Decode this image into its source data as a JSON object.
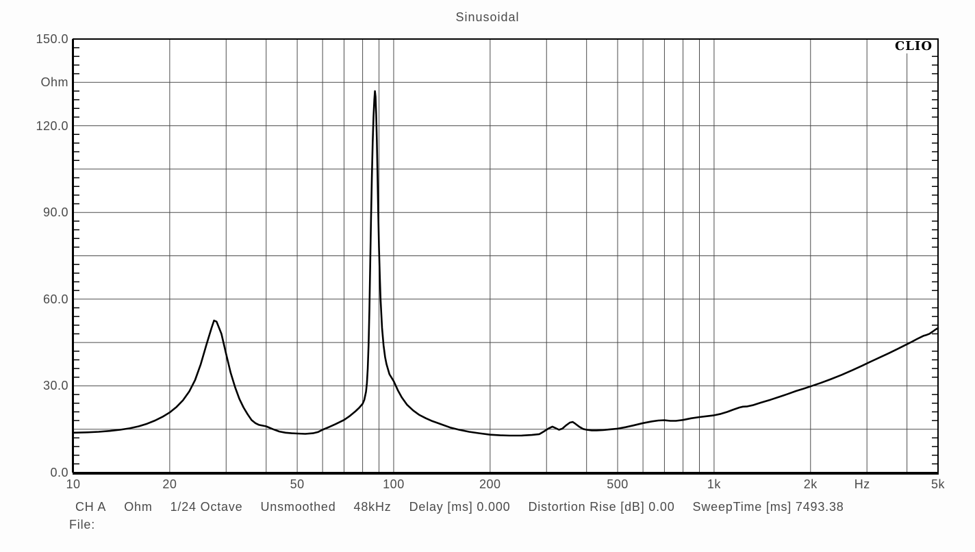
{
  "brand": "CLIO",
  "status": {
    "fields": [
      "CH A",
      "Ohm",
      "1/24 Octave",
      "Unsmoothed",
      "48kHz",
      "Delay [ms] 0.000",
      "Distortion Rise [dB] 0.00",
      "SweepTime [ms] 7493.38"
    ],
    "file_label": "File:"
  },
  "colors": {
    "background": "#fdfdfd",
    "plot_background": "#ffffff",
    "grid": "#4a4a4a",
    "border": "#000000",
    "curve": "#000000",
    "text": "#4a4a4a",
    "logo_text": "#000000"
  },
  "chart_data": {
    "type": "line",
    "title": "Sinusoidal",
    "x_scale": "log",
    "x_unit": "Hz",
    "y_unit": "Ohm",
    "xlim": [
      10,
      5000
    ],
    "ylim": [
      0,
      150
    ],
    "grid": true,
    "y_grid_step": 15,
    "y_minor_tick_step": 3,
    "y_tick_labels": [
      {
        "value": 150,
        "label": "150.0"
      },
      {
        "value": 135,
        "label": "Ohm"
      },
      {
        "value": 120,
        "label": "120.0"
      },
      {
        "value": 90,
        "label": "90.0"
      },
      {
        "value": 60,
        "label": "60.0"
      },
      {
        "value": 30,
        "label": "30.0"
      },
      {
        "value": 0,
        "label": "0.0"
      }
    ],
    "x_tick_labels": [
      {
        "value": 10,
        "label": "10"
      },
      {
        "value": 20,
        "label": "20"
      },
      {
        "value": 50,
        "label": "50"
      },
      {
        "value": 100,
        "label": "100"
      },
      {
        "value": 200,
        "label": "200"
      },
      {
        "value": 500,
        "label": "500"
      },
      {
        "value": 1000,
        "label": "1k"
      },
      {
        "value": 2000,
        "label": "2k"
      },
      {
        "value": 5000,
        "label": "5k"
      }
    ],
    "x_unit_label": {
      "label": "Hz",
      "at": 2900
    },
    "series": [
      {
        "name": "impedance",
        "points": [
          [
            10,
            13.8
          ],
          [
            11,
            13.9
          ],
          [
            12,
            14.1
          ],
          [
            13,
            14.4
          ],
          [
            14,
            14.8
          ],
          [
            15,
            15.3
          ],
          [
            16,
            16.0
          ],
          [
            17,
            16.9
          ],
          [
            18,
            18.0
          ],
          [
            19,
            19.3
          ],
          [
            20,
            20.8
          ],
          [
            21,
            22.7
          ],
          [
            22,
            25.0
          ],
          [
            23,
            28.0
          ],
          [
            24,
            32.0
          ],
          [
            25,
            37.5
          ],
          [
            26,
            44.0
          ],
          [
            27,
            50.0
          ],
          [
            27.5,
            52.6
          ],
          [
            28,
            52.2
          ],
          [
            29,
            48.0
          ],
          [
            30,
            41.0
          ],
          [
            31,
            34.5
          ],
          [
            32,
            29.5
          ],
          [
            33,
            25.5
          ],
          [
            34,
            22.5
          ],
          [
            35,
            20.2
          ],
          [
            36,
            18.2
          ],
          [
            37,
            17.1
          ],
          [
            38,
            16.5
          ],
          [
            40,
            16.0
          ],
          [
            42,
            15.0
          ],
          [
            44,
            14.2
          ],
          [
            46,
            13.8
          ],
          [
            48,
            13.6
          ],
          [
            50,
            13.5
          ],
          [
            53,
            13.4
          ],
          [
            56,
            13.6
          ],
          [
            58,
            14.0
          ],
          [
            60,
            14.8
          ],
          [
            63,
            15.8
          ],
          [
            66,
            16.8
          ],
          [
            68,
            17.5
          ],
          [
            70,
            18.2
          ],
          [
            73,
            19.6
          ],
          [
            76,
            21.2
          ],
          [
            78,
            22.4
          ],
          [
            80,
            23.8
          ],
          [
            81,
            25.2
          ],
          [
            82,
            28.0
          ],
          [
            82.5,
            31.0
          ],
          [
            83,
            36.0
          ],
          [
            83.5,
            44.0
          ],
          [
            84,
            56.0
          ],
          [
            84.5,
            72.0
          ],
          [
            85,
            88.0
          ],
          [
            85.5,
            102.0
          ],
          [
            86,
            114.0
          ],
          [
            86.5,
            123.0
          ],
          [
            87,
            129.0
          ],
          [
            87.4,
            132.0
          ],
          [
            87.8,
            130.0
          ],
          [
            88.2,
            124.0
          ],
          [
            88.6,
            115.0
          ],
          [
            89,
            104.0
          ],
          [
            89.5,
            90.0
          ],
          [
            90,
            78.0
          ],
          [
            90.5,
            68.0
          ],
          [
            91,
            60.0
          ],
          [
            92,
            50.0
          ],
          [
            93,
            44.0
          ],
          [
            94,
            40.0
          ],
          [
            95,
            37.5
          ],
          [
            97,
            34.0
          ],
          [
            100,
            31.6
          ],
          [
            103,
            28.5
          ],
          [
            106,
            26.0
          ],
          [
            110,
            23.5
          ],
          [
            115,
            21.5
          ],
          [
            120,
            20.0
          ],
          [
            126,
            18.8
          ],
          [
            132,
            17.8
          ],
          [
            140,
            16.8
          ],
          [
            150,
            15.6
          ],
          [
            160,
            14.8
          ],
          [
            172,
            14.1
          ],
          [
            185,
            13.6
          ],
          [
            200,
            13.1
          ],
          [
            215,
            12.9
          ],
          [
            230,
            12.8
          ],
          [
            250,
            12.8
          ],
          [
            270,
            13.0
          ],
          [
            285,
            13.3
          ],
          [
            295,
            14.3
          ],
          [
            305,
            15.3
          ],
          [
            313,
            15.9
          ],
          [
            320,
            15.4
          ],
          [
            328,
            14.8
          ],
          [
            336,
            15.2
          ],
          [
            345,
            16.3
          ],
          [
            355,
            17.3
          ],
          [
            362,
            17.5
          ],
          [
            370,
            16.8
          ],
          [
            380,
            15.8
          ],
          [
            390,
            15.1
          ],
          [
            400,
            14.8
          ],
          [
            415,
            14.6
          ],
          [
            430,
            14.6
          ],
          [
            450,
            14.7
          ],
          [
            470,
            14.9
          ],
          [
            500,
            15.2
          ],
          [
            530,
            15.7
          ],
          [
            560,
            16.3
          ],
          [
            600,
            17.1
          ],
          [
            640,
            17.7
          ],
          [
            670,
            18.0
          ],
          [
            700,
            18.1
          ],
          [
            730,
            17.9
          ],
          [
            760,
            17.9
          ],
          [
            800,
            18.2
          ],
          [
            850,
            18.8
          ],
          [
            900,
            19.2
          ],
          [
            950,
            19.5
          ],
          [
            1000,
            19.8
          ],
          [
            1050,
            20.3
          ],
          [
            1100,
            21.0
          ],
          [
            1150,
            21.8
          ],
          [
            1200,
            22.5
          ],
          [
            1230,
            22.8
          ],
          [
            1270,
            22.9
          ],
          [
            1320,
            23.3
          ],
          [
            1400,
            24.2
          ],
          [
            1500,
            25.2
          ],
          [
            1600,
            26.2
          ],
          [
            1700,
            27.2
          ],
          [
            1800,
            28.2
          ],
          [
            1900,
            29.0
          ],
          [
            2000,
            29.8
          ],
          [
            2150,
            31.0
          ],
          [
            2300,
            32.2
          ],
          [
            2500,
            33.8
          ],
          [
            2700,
            35.4
          ],
          [
            2900,
            37.0
          ],
          [
            3100,
            38.5
          ],
          [
            3300,
            39.9
          ],
          [
            3500,
            41.2
          ],
          [
            3700,
            42.5
          ],
          [
            3900,
            43.8
          ],
          [
            4100,
            45.0
          ],
          [
            4300,
            46.2
          ],
          [
            4500,
            47.3
          ],
          [
            4600,
            47.6
          ],
          [
            4700,
            48.0
          ],
          [
            4800,
            48.7
          ],
          [
            4900,
            49.4
          ],
          [
            5000,
            50.0
          ]
        ]
      }
    ]
  }
}
